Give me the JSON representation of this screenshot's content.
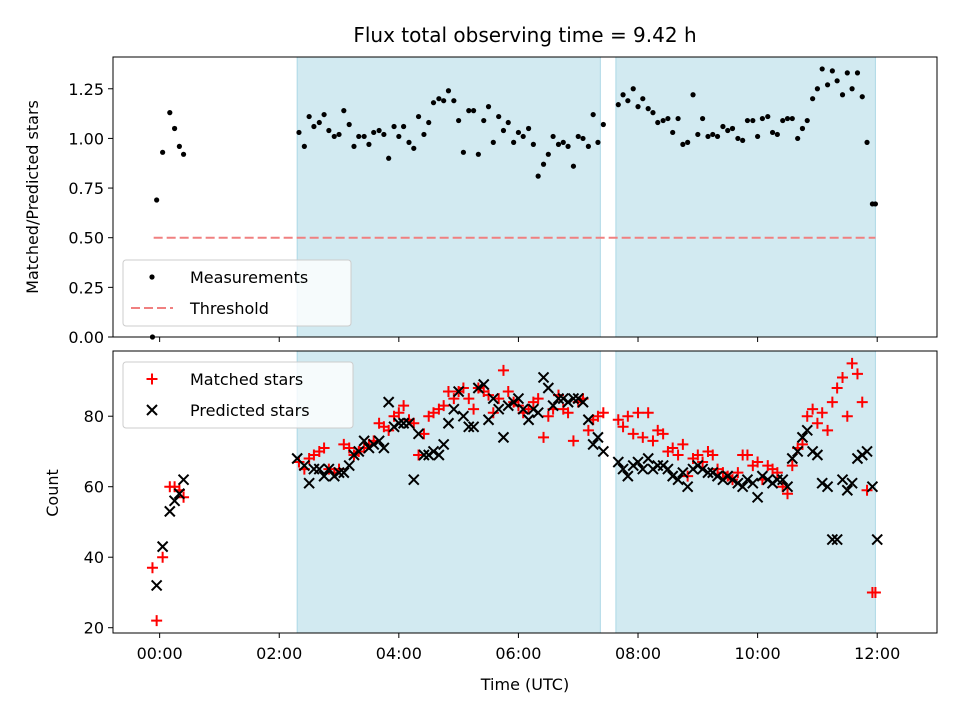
{
  "chart_data": [
    {
      "type": "scatter",
      "title": "Flux total observing time = 9.42 h",
      "xlabel": "",
      "ylabel": "Matched/Predicted stars",
      "xlim_hours": [
        -0.78,
        13.0
      ],
      "ylim": [
        0.0,
        1.41
      ],
      "yticks": [
        "0.00",
        "0.25",
        "0.50",
        "0.75",
        "1.00",
        "1.25"
      ],
      "legend": {
        "placement": "lower-left",
        "entries": [
          "Measurements",
          "Threshold"
        ]
      },
      "shaded_intervals_hours": [
        [
          2.3,
          7.37
        ],
        [
          7.63,
          11.97
        ]
      ],
      "shade_color": "#add8e6",
      "threshold": {
        "name": "Threshold",
        "y": 0.5,
        "x_range_hours": [
          -0.1,
          11.97
        ],
        "color": "#f08080"
      },
      "series": [
        {
          "name": "Measurements",
          "color": "#000000",
          "x_hours": [
            -0.12,
            -0.05,
            0.05,
            0.17,
            0.25,
            0.33,
            0.4,
            2.33,
            2.42,
            2.5,
            2.58,
            2.67,
            2.75,
            2.83,
            2.92,
            3.0,
            3.08,
            3.17,
            3.25,
            3.33,
            3.42,
            3.5,
            3.58,
            3.67,
            3.75,
            3.83,
            3.92,
            4.0,
            4.08,
            4.17,
            4.25,
            4.33,
            4.42,
            4.5,
            4.58,
            4.67,
            4.75,
            4.83,
            4.92,
            5.0,
            5.08,
            5.17,
            5.25,
            5.33,
            5.42,
            5.5,
            5.58,
            5.67,
            5.75,
            5.83,
            5.92,
            6.0,
            6.08,
            6.17,
            6.25,
            6.33,
            6.42,
            6.5,
            6.58,
            6.67,
            6.75,
            6.83,
            6.92,
            7.0,
            7.08,
            7.17,
            7.25,
            7.33,
            7.42,
            7.67,
            7.75,
            7.83,
            7.92,
            8.0,
            8.08,
            8.17,
            8.25,
            8.33,
            8.42,
            8.5,
            8.58,
            8.67,
            8.75,
            8.83,
            8.92,
            9.0,
            9.08,
            9.17,
            9.25,
            9.33,
            9.42,
            9.5,
            9.58,
            9.67,
            9.75,
            9.83,
            9.92,
            10.0,
            10.08,
            10.17,
            10.25,
            10.33,
            10.42,
            10.5,
            10.58,
            10.67,
            10.75,
            10.83,
            10.92,
            11.0,
            11.08,
            11.17,
            11.25,
            11.33,
            11.42,
            11.5,
            11.58,
            11.67,
            11.75,
            11.83,
            11.92,
            11.97
          ],
          "values": [
            0.0,
            0.69,
            0.93,
            1.13,
            1.05,
            0.96,
            0.92,
            1.03,
            0.96,
            1.11,
            1.06,
            1.08,
            1.12,
            1.04,
            1.01,
            1.02,
            1.14,
            1.07,
            0.96,
            1.01,
            1.01,
            0.97,
            1.03,
            1.04,
            1.02,
            0.9,
            1.06,
            1.01,
            1.06,
            0.98,
            0.95,
            1.11,
            1.02,
            1.08,
            1.18,
            1.2,
            1.19,
            1.24,
            1.19,
            1.09,
            0.93,
            1.14,
            1.14,
            0.92,
            1.09,
            1.16,
            0.98,
            1.11,
            1.04,
            1.08,
            0.98,
            1.03,
            1.01,
            1.05,
            0.97,
            0.81,
            0.87,
            0.92,
            1.01,
            0.97,
            0.98,
            0.96,
            0.86,
            1.01,
            1.0,
            0.96,
            1.12,
            0.98,
            1.07,
            1.17,
            1.22,
            1.19,
            1.25,
            1.16,
            1.2,
            1.15,
            1.13,
            1.08,
            1.09,
            1.1,
            1.03,
            1.1,
            0.97,
            0.98,
            1.22,
            1.02,
            1.1,
            1.01,
            1.02,
            1.01,
            1.06,
            1.04,
            1.05,
            1.0,
            0.99,
            1.09,
            1.09,
            1.01,
            1.1,
            1.11,
            1.03,
            1.02,
            1.09,
            1.1,
            1.1,
            1.0,
            1.05,
            1.09,
            1.2,
            1.25,
            1.35,
            1.27,
            1.34,
            1.29,
            1.22,
            1.33,
            1.25,
            1.33,
            1.21,
            0.98,
            0.67,
            0.67
          ]
        }
      ]
    },
    {
      "type": "scatter",
      "title": "",
      "xlabel": "Time (UTC)",
      "ylabel": "Count",
      "xlim_hours": [
        -0.78,
        13.0
      ],
      "ylim": [
        18.5,
        98.5
      ],
      "yticks": [
        "20",
        "40",
        "60",
        "80"
      ],
      "xticks": [
        "00:00",
        "02:00",
        "04:00",
        "06:00",
        "08:00",
        "10:00",
        "12:00"
      ],
      "legend": {
        "placement": "upper-left",
        "entries": [
          "Matched stars",
          "Predicted stars"
        ]
      },
      "shaded_intervals_hours": [
        [
          2.3,
          7.37
        ],
        [
          7.63,
          11.97
        ]
      ],
      "shade_color": "#add8e6",
      "series": [
        {
          "name": "Matched stars",
          "marker": "plus",
          "color": "#ff0000",
          "x_hours": [
            -0.12,
            -0.05,
            0.05,
            0.17,
            0.25,
            0.33,
            0.4,
            2.33,
            2.42,
            2.5,
            2.58,
            2.67,
            2.75,
            2.83,
            2.92,
            3.0,
            3.08,
            3.17,
            3.25,
            3.33,
            3.42,
            3.5,
            3.58,
            3.67,
            3.75,
            3.83,
            3.92,
            4.0,
            4.08,
            4.17,
            4.25,
            4.33,
            4.42,
            4.5,
            4.58,
            4.67,
            4.75,
            4.83,
            4.92,
            5.0,
            5.08,
            5.17,
            5.25,
            5.33,
            5.42,
            5.5,
            5.58,
            5.67,
            5.75,
            5.83,
            5.92,
            6.0,
            6.08,
            6.17,
            6.25,
            6.33,
            6.42,
            6.5,
            6.58,
            6.67,
            6.75,
            6.83,
            6.92,
            7.0,
            7.08,
            7.17,
            7.25,
            7.33,
            7.42,
            7.67,
            7.75,
            7.83,
            7.92,
            8.0,
            8.08,
            8.17,
            8.25,
            8.33,
            8.42,
            8.5,
            8.58,
            8.67,
            8.75,
            8.83,
            8.92,
            9.0,
            9.08,
            9.17,
            9.25,
            9.33,
            9.42,
            9.5,
            9.58,
            9.67,
            9.75,
            9.83,
            9.92,
            10.0,
            10.08,
            10.17,
            10.25,
            10.33,
            10.42,
            10.5,
            10.58,
            10.67,
            10.75,
            10.83,
            10.92,
            11.0,
            11.08,
            11.17,
            11.25,
            11.33,
            11.42,
            11.5,
            11.58,
            11.67,
            11.75,
            11.83,
            11.92,
            11.97
          ],
          "values": [
            37,
            22,
            40,
            60,
            60,
            59,
            57,
            67,
            65,
            68,
            69,
            70,
            71,
            65,
            64,
            65,
            72,
            71,
            69,
            70,
            71,
            72,
            73,
            78,
            77,
            76,
            80,
            81,
            83,
            79,
            78,
            69,
            75,
            80,
            81,
            82,
            83,
            87,
            85,
            87,
            88,
            85,
            82,
            88,
            87,
            86,
            81,
            85,
            93,
            87,
            84,
            83,
            81,
            82,
            84,
            85,
            74,
            80,
            82,
            86,
            82,
            81,
            73,
            84,
            85,
            76,
            79,
            80,
            81,
            79,
            77,
            80,
            75,
            81,
            74,
            81,
            73,
            76,
            75,
            70,
            71,
            69,
            72,
            63,
            68,
            69,
            67,
            70,
            69,
            65,
            64,
            63,
            62,
            64,
            69,
            69,
            66,
            67,
            62,
            66,
            65,
            64,
            60,
            58,
            66,
            71,
            72,
            80,
            82,
            78,
            81,
            76,
            84,
            88,
            91,
            80,
            95,
            92,
            84,
            59,
            30,
            30
          ]
        },
        {
          "name": "Predicted stars",
          "marker": "x",
          "color": "#000000",
          "x_hours": [
            -0.05,
            0.05,
            0.17,
            0.25,
            0.33,
            0.4,
            2.3,
            2.42,
            2.5,
            2.58,
            2.67,
            2.75,
            2.83,
            2.92,
            3.0,
            3.08,
            3.17,
            3.25,
            3.33,
            3.42,
            3.5,
            3.58,
            3.67,
            3.75,
            3.83,
            3.92,
            4.0,
            4.08,
            4.17,
            4.25,
            4.33,
            4.42,
            4.5,
            4.58,
            4.67,
            4.75,
            4.83,
            4.92,
            5.0,
            5.08,
            5.17,
            5.25,
            5.33,
            5.42,
            5.5,
            5.58,
            5.67,
            5.75,
            5.83,
            5.92,
            6.0,
            6.08,
            6.17,
            6.25,
            6.33,
            6.42,
            6.5,
            6.58,
            6.67,
            6.75,
            6.83,
            6.92,
            7.0,
            7.08,
            7.17,
            7.25,
            7.33,
            7.42,
            7.67,
            7.75,
            7.83,
            7.92,
            8.0,
            8.08,
            8.17,
            8.25,
            8.33,
            8.42,
            8.5,
            8.58,
            8.67,
            8.75,
            8.83,
            8.92,
            9.0,
            9.08,
            9.17,
            9.25,
            9.33,
            9.42,
            9.5,
            9.58,
            9.67,
            9.75,
            9.83,
            9.92,
            10.0,
            10.08,
            10.17,
            10.25,
            10.33,
            10.42,
            10.5,
            10.58,
            10.67,
            10.75,
            10.83,
            10.92,
            11.0,
            11.08,
            11.17,
            11.25,
            11.33,
            11.42,
            11.5,
            11.58,
            11.67,
            11.75,
            11.83,
            11.92,
            12.0
          ],
          "values": [
            32,
            43,
            53,
            56,
            58,
            62,
            68,
            66,
            61,
            65,
            65,
            63,
            65,
            63,
            64,
            64,
            66,
            69,
            70,
            73,
            71,
            72,
            73,
            71,
            84,
            77,
            78,
            78,
            78,
            62,
            75,
            69,
            69,
            70,
            69,
            72,
            78,
            82,
            87,
            80,
            77,
            77,
            88,
            89,
            79,
            85,
            82,
            74,
            83,
            84,
            85,
            82,
            79,
            82,
            81,
            91,
            88,
            83,
            85,
            85,
            84,
            85,
            85,
            84,
            79,
            72,
            74,
            70,
            67,
            65,
            63,
            66,
            67,
            65,
            68,
            65,
            66,
            66,
            65,
            63,
            62,
            64,
            60,
            65,
            66,
            65,
            64,
            64,
            63,
            62,
            63,
            62,
            61,
            60,
            62,
            61,
            57,
            63,
            62,
            61,
            62,
            62,
            60,
            68,
            70,
            74,
            76,
            70,
            69,
            61,
            60,
            45,
            45,
            62,
            59,
            61,
            68,
            69,
            70,
            60,
            45
          ]
        }
      ]
    }
  ]
}
